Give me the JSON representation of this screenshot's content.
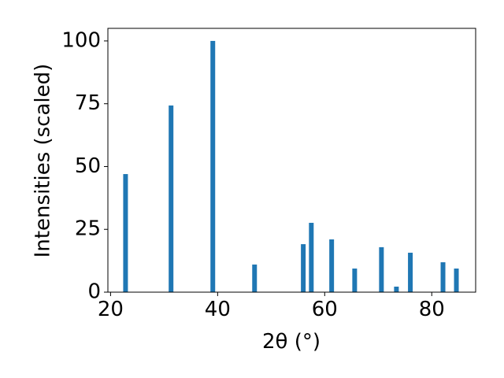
{
  "chart_data": {
    "type": "bar",
    "xlabel": "2θ (°)",
    "ylabel": "Intensities (scaled)",
    "x": [
      22.8,
      31.3,
      39.1,
      46.9,
      56.0,
      57.5,
      61.3,
      65.6,
      70.6,
      73.4,
      76.0,
      82.1,
      84.6
    ],
    "values": [
      47.0,
      74.3,
      100,
      11.0,
      19.1,
      27.6,
      21.0,
      9.4,
      17.9,
      2.2,
      15.7,
      11.9,
      9.4
    ],
    "color": "#1f77b4",
    "xlim": [
      19.5,
      88.2
    ],
    "xticks": [
      20,
      40,
      60,
      80
    ],
    "ylim": [
      0,
      105
    ],
    "yticks": [
      0,
      25,
      50,
      75,
      100
    ]
  }
}
